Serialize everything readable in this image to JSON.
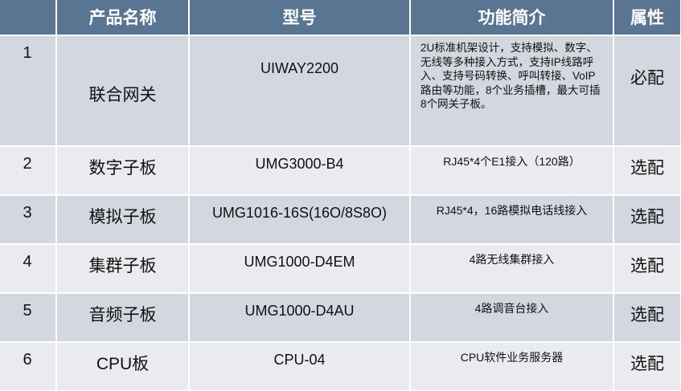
{
  "headers": [
    "",
    "产品名称",
    "型号",
    "功能简介",
    "属性"
  ],
  "rows": [
    {
      "num": "1",
      "name": "联合网关",
      "model": "UIWAY2200",
      "desc": "2U标准机架设计，支持模拟、数字、无线等多种接入方式，支持IP线路呼入、支持号码转换、呼叫转接、VoIP路由等功能，8个业务插槽，最大可插8个网关子板。",
      "attr": "必配"
    },
    {
      "num": "2",
      "name": "数字子板",
      "model": "UMG3000-B4",
      "desc": "RJ45*4个E1接入（120路）",
      "attr": "选配"
    },
    {
      "num": "3",
      "name": "模拟子板",
      "model": "UMG1016-16S(16O/8S8O)",
      "desc": "RJ45*4，16路模拟电话线接入",
      "attr": "选配"
    },
    {
      "num": "4",
      "name": "集群子板",
      "model": "UMG1000-D4EM",
      "desc": "4路无线集群接入",
      "attr": "选配"
    },
    {
      "num": "5",
      "name": "音频子板",
      "model": "UMG1000-D4AU",
      "desc": "4路调音台接入",
      "attr": "选配"
    },
    {
      "num": "6",
      "name": "CPU板",
      "model": "CPU-04",
      "desc": "CPU软件业务服务器",
      "attr": "选配"
    }
  ],
  "colors": {
    "header": "#5a7592",
    "row_odd": "#d3d7df",
    "row_even": "#e9ebef"
  }
}
